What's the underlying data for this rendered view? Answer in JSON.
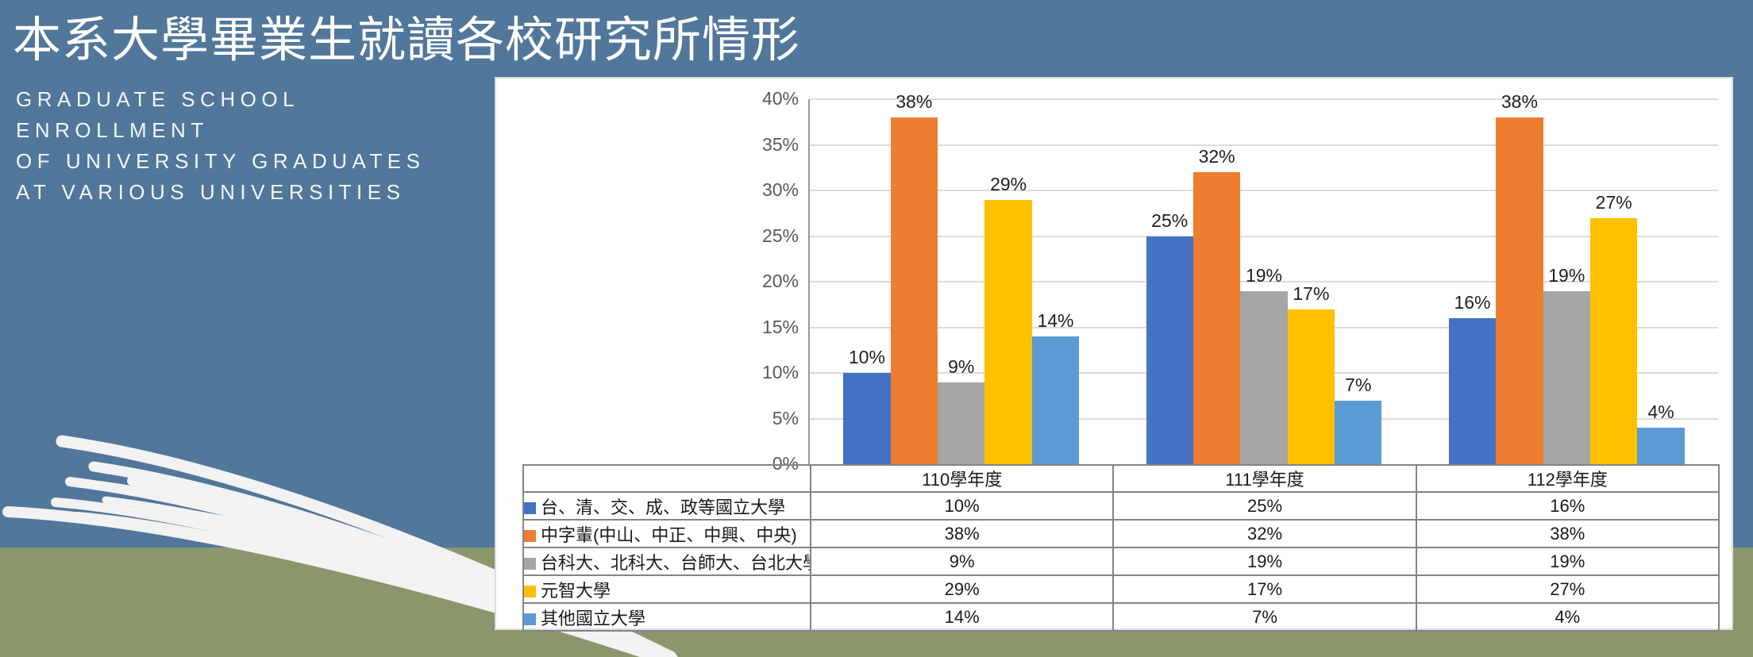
{
  "page": {
    "title": "本系大學畢業生就讀各校研究所情形",
    "subtitle_lines": [
      "GRADUATE SCHOOL",
      "ENROLLMENT",
      "OF UNIVERSITY GRADUATES",
      "AT VARIOUS UNIVERSITIES"
    ]
  },
  "colors": {
    "background_top": "#51779B",
    "background_bottom": "#8A966B",
    "panel_background": "#FFFFFF",
    "panel_border": "#DDDDDD",
    "gridline": "#DCDCDC",
    "axis_line": "#9A9A9A",
    "table_border": "#848484",
    "tick_label": "#595959",
    "data_label": "#1F1F1F",
    "grass_decoration": "#F2F2F2",
    "title_text": "#FFFFFF"
  },
  "chart_data": {
    "type": "bar",
    "categories": [
      "110學年度",
      "111學年度",
      "112學年度"
    ],
    "series": [
      {
        "name": "台、清、交、成、政等國立大學",
        "color": "#4472C4",
        "values": [
          10,
          25,
          16
        ]
      },
      {
        "name": "中字輩(中山、中正、中興、中央)",
        "color": "#ED7D31",
        "values": [
          38,
          32,
          38
        ]
      },
      {
        "name": "台科大、北科大、台師大、台北大學",
        "color": "#A5A5A5",
        "values": [
          9,
          19,
          19
        ]
      },
      {
        "name": "元智大學",
        "color": "#FFC000",
        "values": [
          29,
          17,
          27
        ]
      },
      {
        "name": "其他國立大學",
        "color": "#5B9BD5",
        "values": [
          14,
          7,
          4
        ]
      }
    ],
    "value_suffix": "%",
    "ylim": [
      0,
      40
    ],
    "ytick_step": 5,
    "ytick_labels": [
      "0%",
      "5%",
      "10%",
      "15%",
      "20%",
      "25%",
      "30%",
      "35%",
      "40%"
    ],
    "grid": true,
    "data_labels": true,
    "legend_position": "data-table-left",
    "data_table_shown": true
  }
}
